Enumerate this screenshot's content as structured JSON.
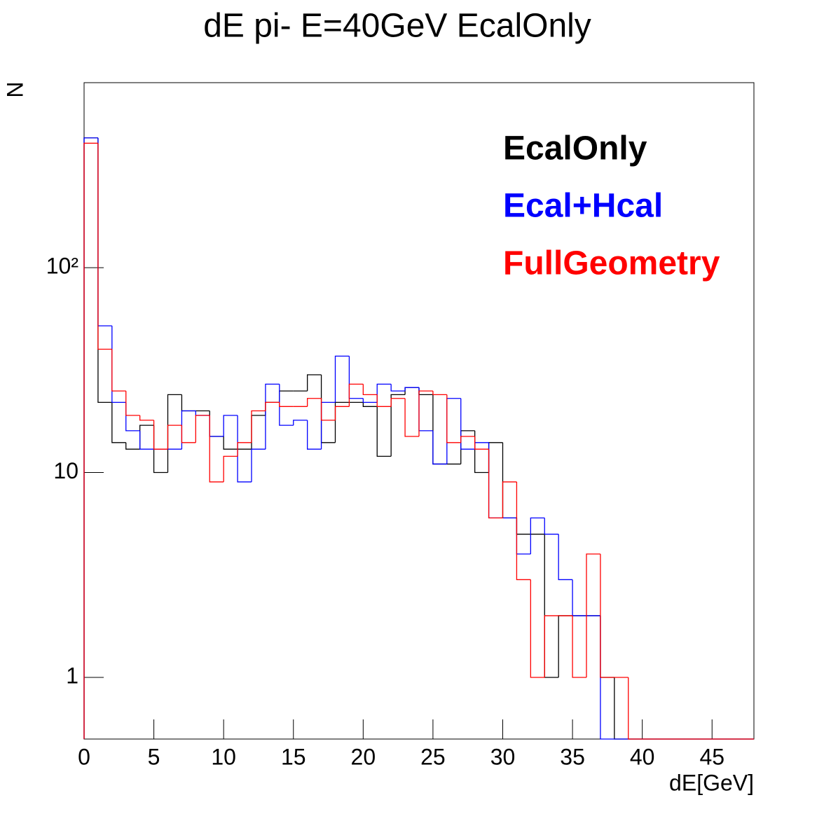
{
  "chart_data": {
    "type": "histogram",
    "title": "dE pi- E=40GeV EcalOnly",
    "x_label": "dE[GeV]",
    "y_label": "N",
    "log_y": true,
    "bins": [
      0,
      1,
      2,
      3,
      4,
      5,
      6,
      7,
      8,
      9,
      10,
      11,
      12,
      13,
      14,
      15,
      16,
      17,
      18,
      19,
      20,
      21,
      22,
      23,
      24,
      25,
      26,
      27,
      28,
      29,
      30,
      31,
      32,
      33,
      34,
      35,
      36,
      37,
      38,
      39,
      40,
      41,
      42,
      43,
      44,
      45,
      46,
      47,
      48
    ],
    "series": [
      {
        "name": "EcalOnly",
        "color": "#000000",
        "values": [
          430,
          22,
          14,
          13,
          17,
          10,
          24,
          20,
          20,
          15,
          13,
          13,
          19,
          22,
          25,
          25,
          30,
          14,
          22,
          22,
          21,
          12,
          24,
          26,
          24,
          11,
          11,
          16,
          10,
          14,
          6,
          5,
          5,
          1,
          2,
          2,
          2,
          1,
          0,
          0,
          0,
          0,
          0,
          0,
          0,
          0,
          0,
          0
        ]
      },
      {
        "name": "Ecal+Hcal",
        "color": "#0000ff",
        "values": [
          430,
          52,
          22,
          16,
          13,
          13,
          13,
          20,
          19,
          15,
          19,
          9,
          13,
          27,
          17,
          18,
          13,
          22,
          37,
          23,
          22,
          27,
          25,
          26,
          16,
          11,
          23,
          13,
          14,
          6,
          6,
          4,
          6,
          5,
          3,
          2,
          2,
          0,
          0,
          0,
          0,
          0,
          0,
          0,
          0,
          0,
          0,
          0
        ]
      },
      {
        "name": "FullGeometry",
        "color": "#ff0000",
        "values": [
          405,
          40,
          25,
          19,
          18,
          13,
          17,
          14,
          19,
          9,
          12,
          14,
          20,
          22,
          21,
          21,
          23,
          18,
          21,
          27,
          24,
          21,
          23,
          15,
          25,
          24,
          14,
          15,
          13,
          6,
          9,
          3,
          1,
          2,
          2,
          1,
          4,
          1,
          1,
          0,
          0,
          0,
          0,
          0,
          0,
          0,
          0,
          0
        ]
      }
    ],
    "xlim": [
      0,
      48
    ],
    "ylim": [
      0.5,
      800
    ],
    "xticks": [
      0,
      5,
      10,
      15,
      20,
      25,
      30,
      35,
      40,
      45
    ],
    "yticks": [
      1,
      10,
      {
        "value": 100,
        "label": "10²"
      }
    ]
  }
}
